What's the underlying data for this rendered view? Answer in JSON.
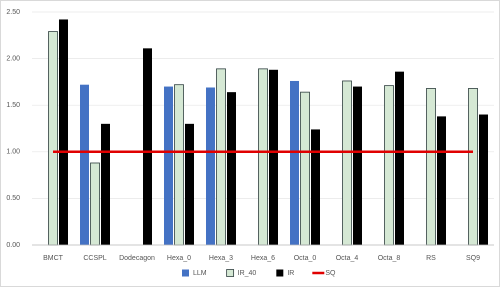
{
  "chart_data": {
    "type": "bar",
    "categories": [
      "BMCT",
      "CCSPL",
      "Dodecagon",
      "Hexa_0",
      "Hexa_3",
      "Hexa_6",
      "Octa_0",
      "Octa_4",
      "Octa_8",
      "RS",
      "SQ9"
    ],
    "series": [
      {
        "name": "LLM",
        "color": "#4472c4",
        "values": [
          null,
          1.72,
          null,
          1.7,
          1.69,
          null,
          1.76,
          null,
          null,
          null,
          null
        ]
      },
      {
        "name": "IR_40",
        "color": "#d5e8d4",
        "values": [
          2.29,
          0.88,
          null,
          1.72,
          1.89,
          1.89,
          1.64,
          1.76,
          1.71,
          1.68,
          1.68
        ]
      },
      {
        "name": "IR",
        "color": "#000000",
        "values": [
          2.42,
          1.3,
          2.11,
          1.3,
          1.64,
          1.88,
          1.24,
          1.7,
          1.86,
          1.38,
          1.4
        ]
      },
      {
        "name": "SQ",
        "type": "line",
        "color": "#e00000",
        "values": [
          1,
          1,
          1,
          1,
          1,
          1,
          1,
          1,
          1,
          1,
          1
        ]
      }
    ],
    "ylim": [
      0,
      2.5
    ],
    "yticks": [
      {
        "value": 0,
        "label": "0.00"
      },
      {
        "value": 0.5,
        "label": "0.50"
      },
      {
        "value": 1,
        "label": "1.00"
      },
      {
        "value": 1.5,
        "label": "1.50"
      },
      {
        "value": 2,
        "label": "2.00"
      },
      {
        "value": 2.5,
        "label": "2.50"
      }
    ],
    "grid": true,
    "legend": "bottom"
  }
}
